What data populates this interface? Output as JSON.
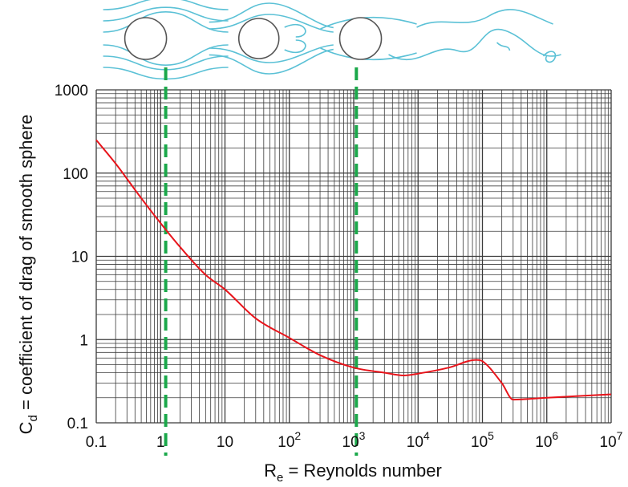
{
  "chart_data": {
    "type": "line",
    "x_scale": "log",
    "y_scale": "log",
    "xlim": [
      0.1,
      10000000
    ],
    "ylim": [
      0.1,
      1000
    ],
    "grid": true,
    "xlabel": {
      "main": "R",
      "sub": "e",
      "rest": " = Reynolds number"
    },
    "ylabel": {
      "main": "C",
      "sub": "d",
      "rest": " = coefficient of drag of smooth sphere"
    },
    "x_ticks": [
      {
        "value": 0.1,
        "base": "0.1",
        "exp": ""
      },
      {
        "value": 1,
        "base": "1",
        "exp": ""
      },
      {
        "value": 10,
        "base": "10",
        "exp": ""
      },
      {
        "value": 100,
        "base": "10",
        "exp": "2"
      },
      {
        "value": 1000,
        "base": "10",
        "exp": "3"
      },
      {
        "value": 10000,
        "base": "10",
        "exp": "4"
      },
      {
        "value": 100000,
        "base": "10",
        "exp": "5"
      },
      {
        "value": 1000000,
        "base": "10",
        "exp": "6"
      },
      {
        "value": 10000000,
        "base": "10",
        "exp": "7"
      }
    ],
    "y_ticks": [
      {
        "value": 0.1,
        "label": "0.1"
      },
      {
        "value": 1,
        "label": "1"
      },
      {
        "value": 10,
        "label": "10"
      },
      {
        "value": 100,
        "label": "100"
      },
      {
        "value": 1000,
        "label": "1000"
      }
    ],
    "series": [
      {
        "color": "#e8141b",
        "x": [
          0.1,
          0.2,
          0.5,
          1,
          2,
          5,
          10,
          30,
          100,
          300,
          1000,
          3000,
          6000,
          10000,
          30000,
          80000,
          100000,
          200000,
          300000,
          1000000,
          10000000
        ],
        "y": [
          250,
          130,
          50,
          25,
          13,
          6,
          4,
          1.8,
          1.05,
          0.65,
          0.46,
          0.4,
          0.37,
          0.39,
          0.46,
          0.57,
          0.55,
          0.3,
          0.19,
          0.2,
          0.22
        ]
      }
    ],
    "markers": [
      {
        "x": 1.2,
        "color": "#1aa84a",
        "style": "dashed"
      },
      {
        "x": 1100,
        "color": "#1aa84a",
        "style": "dashed"
      }
    ],
    "flow_illustrations": [
      {
        "regime": "laminar",
        "centre_x": 1.2
      },
      {
        "regime": "separated-vortices",
        "centre_x": 100
      },
      {
        "regime": "turbulent-wake",
        "centre_x": 30000
      }
    ],
    "colors": {
      "grid": "#3a3a3a",
      "streamline": "#5bc1d6",
      "sphere": "#555555"
    }
  }
}
